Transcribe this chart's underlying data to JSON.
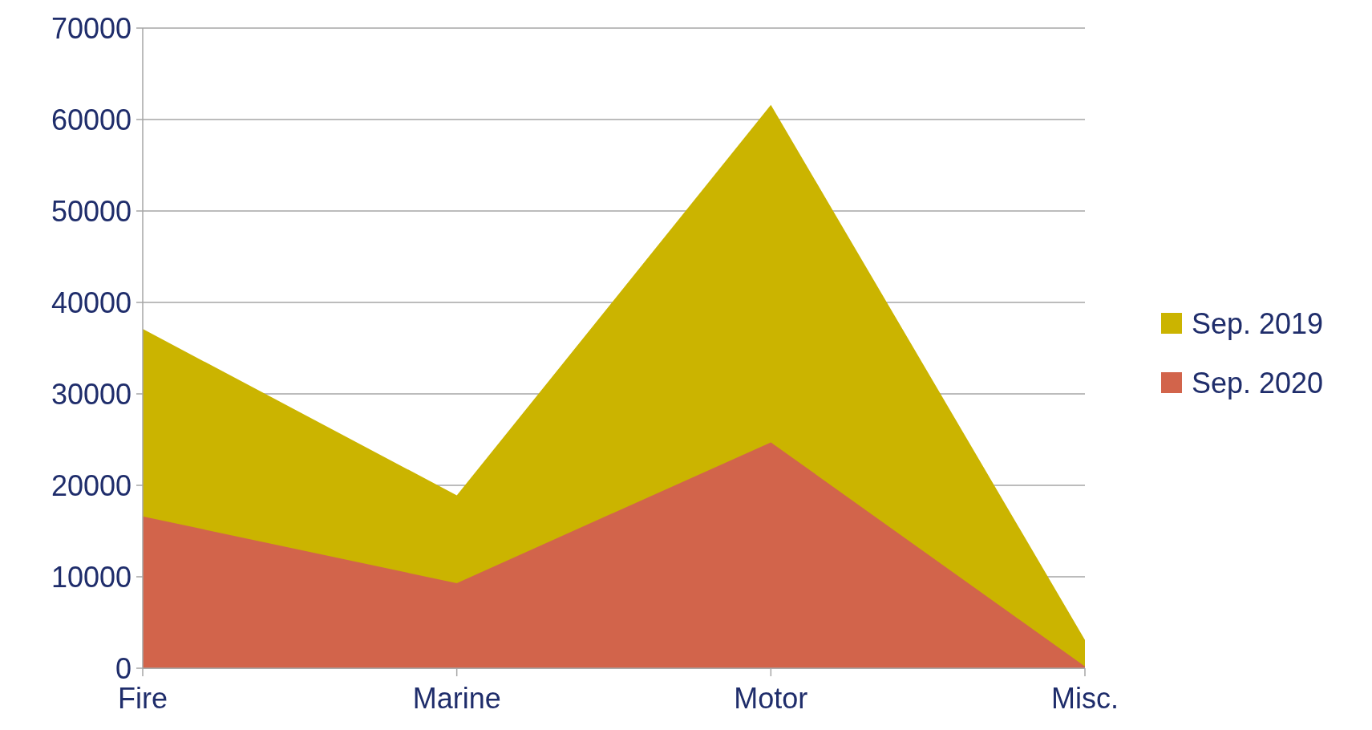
{
  "chart_data": {
    "type": "area",
    "categories": [
      "Fire",
      "Marine",
      "Motor",
      "Misc."
    ],
    "series": [
      {
        "name": "Sep. 2019",
        "color": "#cbb400",
        "values": [
          37100,
          18900,
          61600,
          3100
        ]
      },
      {
        "name": "Sep. 2020",
        "color": "#d2644b",
        "values": [
          16600,
          9300,
          24700,
          200
        ]
      }
    ],
    "ylim": [
      0,
      70000
    ],
    "yticks": [
      0,
      10000,
      20000,
      30000,
      40000,
      50000,
      60000,
      70000
    ],
    "grid": "y",
    "legend": "right"
  }
}
